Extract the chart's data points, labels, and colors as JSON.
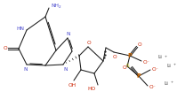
{
  "bg_color": "#ffffff",
  "line_color": "#1a1a1a",
  "atom_colors": {
    "N": "#4444cc",
    "O": "#cc2200",
    "S": "#aaaa00",
    "P": "#cc6600",
    "Li": "#333333",
    "C": "#1a1a1a"
  },
  "figsize": [
    2.16,
    1.19
  ],
  "dpi": 100
}
